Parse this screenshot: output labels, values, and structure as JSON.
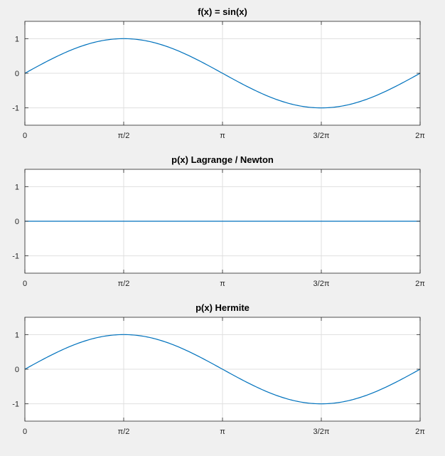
{
  "chart_data": [
    {
      "type": "line",
      "title": "f(x) = sin(x)",
      "xlabel": "",
      "ylabel": "",
      "xlim": [
        0,
        6.283185
      ],
      "ylim": [
        -1.5,
        1.5
      ],
      "xticks": [
        0,
        1.570796,
        3.141593,
        4.712389,
        6.283185
      ],
      "xtick_labels": [
        "0",
        "π/2",
        "π",
        "3/2π",
        "2π"
      ],
      "yticks": [
        -1,
        0,
        1
      ],
      "ytick_labels": [
        "-1",
        "0",
        "1"
      ],
      "grid": true,
      "series": [
        {
          "color": "#0072bd",
          "x": [
            0,
            0.3927,
            0.7854,
            1.1781,
            1.5708,
            1.9635,
            2.3562,
            2.7489,
            3.1416,
            3.5343,
            3.927,
            4.3197,
            4.7124,
            5.1051,
            5.4978,
            5.8905,
            6.2832
          ],
          "y": [
            0,
            0.383,
            0.707,
            0.924,
            1,
            0.924,
            0.707,
            0.383,
            0,
            -0.383,
            -0.707,
            -0.924,
            -1,
            -0.924,
            -0.707,
            -0.383,
            0
          ]
        }
      ]
    },
    {
      "type": "line",
      "title": "p(x) Lagrange / Newton",
      "xlabel": "",
      "ylabel": "",
      "xlim": [
        0,
        6.283185
      ],
      "ylim": [
        -1.5,
        1.5
      ],
      "xticks": [
        0,
        1.570796,
        3.141593,
        4.712389,
        6.283185
      ],
      "xtick_labels": [
        "0",
        "π/2",
        "π",
        "3/2π",
        "2π"
      ],
      "yticks": [
        -1,
        0,
        1
      ],
      "ytick_labels": [
        "-1",
        "0",
        "1"
      ],
      "grid": true,
      "series": [
        {
          "color": "#0072bd",
          "x": [
            0,
            1.5708,
            3.1416,
            4.7124,
            6.2832
          ],
          "y": [
            0,
            0,
            0,
            0,
            0
          ]
        }
      ]
    },
    {
      "type": "line",
      "title": "p(x) Hermite",
      "xlabel": "",
      "ylabel": "",
      "xlim": [
        0,
        6.283185
      ],
      "ylim": [
        -1.5,
        1.5
      ],
      "xticks": [
        0,
        1.570796,
        3.141593,
        4.712389,
        6.283185
      ],
      "xtick_labels": [
        "0",
        "π/2",
        "π",
        "3/2π",
        "2π"
      ],
      "yticks": [
        -1,
        0,
        1
      ],
      "ytick_labels": [
        "-1",
        "0",
        "1"
      ],
      "grid": true,
      "series": [
        {
          "color": "#0072bd",
          "x": [
            0,
            0.3927,
            0.7854,
            1.1781,
            1.5708,
            1.9635,
            2.3562,
            2.7489,
            3.1416,
            3.5343,
            3.927,
            4.3197,
            4.7124,
            5.1051,
            5.4978,
            5.8905,
            6.2832
          ],
          "y": [
            0,
            0.383,
            0.707,
            0.924,
            1,
            0.924,
            0.707,
            0.383,
            0,
            -0.383,
            -0.707,
            -0.924,
            -1,
            -0.924,
            -0.707,
            -0.383,
            0
          ]
        }
      ]
    }
  ]
}
